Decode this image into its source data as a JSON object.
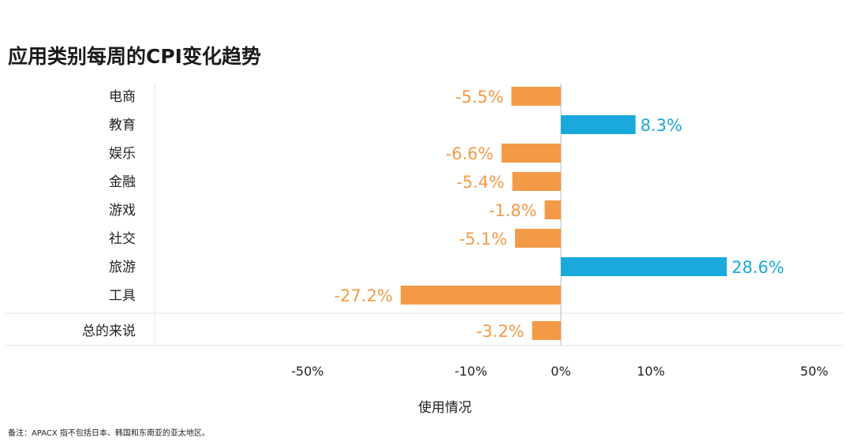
{
  "chart_data": {
    "type": "bar",
    "orientation": "horizontal",
    "title": "应用类别每周的CPI变化趋势",
    "xlabel": "使用情况",
    "ylabel": "",
    "categories": [
      "电商",
      "教育",
      "娱乐",
      "金融",
      "游戏",
      "社交",
      "旅游",
      "工具"
    ],
    "values": [
      -5.5,
      8.3,
      -6.6,
      -5.4,
      -1.8,
      -5.1,
      28.6,
      -27.2
    ],
    "value_labels": [
      "-5.5%",
      "8.3%",
      "-6.6%",
      "-5.4%",
      "-1.8%",
      "-5.1%",
      "28.6%",
      "-27.2%"
    ],
    "summary": {
      "category": "总的来说",
      "value": -3.2,
      "label": "-3.2%"
    },
    "x_ticks": [
      {
        "value": -50,
        "label": "-50%"
      },
      {
        "value": -10,
        "label": "-10%"
      },
      {
        "value": 0,
        "label": "0%"
      },
      {
        "value": 10,
        "label": "10%"
      },
      {
        "value": 50,
        "label": "50%"
      }
    ],
    "xlim": [
      -50,
      50
    ],
    "scale": "piecewise: -50..-10 compressed, -10..10 expanded, 10..50 compressed",
    "grid": false,
    "legend": "none",
    "colors": {
      "positive": "#1aa9dc",
      "negative": "#f39a47"
    },
    "footnote": "备注：APACX 指不包括日本、韩国和东南亚的亚太地区。"
  }
}
